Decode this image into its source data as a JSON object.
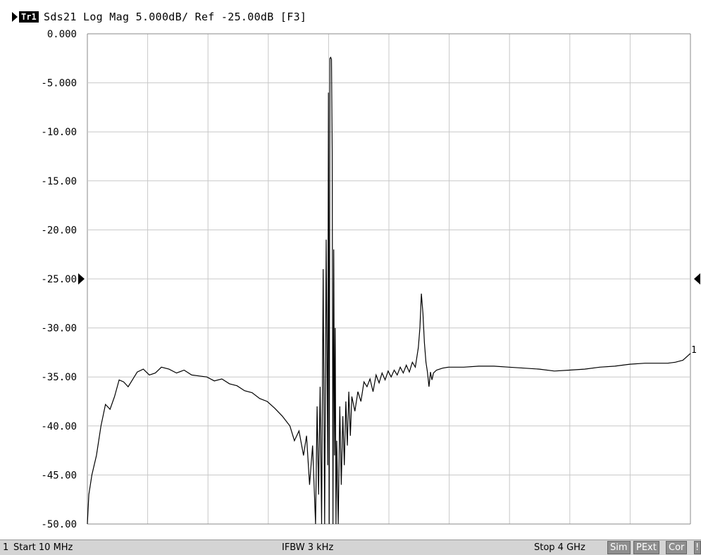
{
  "header": {
    "trace_badge": "Tr1",
    "trace_text": "Sds21 Log Mag 5.000dB/ Ref -25.00dB [F3]"
  },
  "chart_data": {
    "type": "line",
    "title": "Sds21 Log Mag 5.000dB/ Ref -25.00dB [F3]",
    "xlabel": "",
    "ylabel": "",
    "xlim": [
      0.01,
      4.0
    ],
    "ylim": [
      -50,
      0
    ],
    "x_unit": "GHz",
    "y_unit": "dB",
    "grid": true,
    "reference_level": -25.0,
    "scale_per_div": 5.0,
    "yticks": [
      "0.000",
      "-5.000",
      "-10.00",
      "-15.00",
      "-20.00",
      "-25.00",
      "-30.00",
      "-35.00",
      "-40.00",
      "-45.00",
      "-50.00"
    ],
    "trace_marker_label": "1",
    "series": [
      {
        "x": [
          0.01,
          0.02,
          0.04,
          0.07,
          0.1,
          0.13,
          0.16,
          0.19,
          0.22,
          0.25,
          0.28,
          0.3,
          0.34,
          0.38,
          0.42,
          0.46,
          0.5,
          0.55,
          0.6,
          0.65,
          0.7,
          0.75,
          0.8,
          0.85,
          0.9,
          0.95,
          1.0,
          1.05,
          1.1,
          1.15,
          1.2,
          1.25,
          1.3,
          1.35,
          1.38,
          1.41,
          1.44,
          1.46,
          1.48,
          1.5,
          1.52,
          1.53,
          1.54,
          1.55,
          1.56,
          1.57,
          1.58,
          1.59,
          1.6,
          1.605,
          1.61,
          1.615,
          1.62,
          1.625,
          1.63,
          1.635,
          1.64,
          1.645,
          1.65,
          1.655,
          1.66,
          1.67,
          1.68,
          1.69,
          1.7,
          1.71,
          1.72,
          1.73,
          1.74,
          1.75,
          1.76,
          1.78,
          1.8,
          1.82,
          1.84,
          1.86,
          1.88,
          1.9,
          1.92,
          1.94,
          1.96,
          1.98,
          2.0,
          2.02,
          2.04,
          2.06,
          2.08,
          2.1,
          2.12,
          2.14,
          2.16,
          2.18,
          2.2,
          2.21,
          2.22,
          2.23,
          2.24,
          2.25,
          2.26,
          2.27,
          2.28,
          2.29,
          2.3,
          2.32,
          2.36,
          2.4,
          2.5,
          2.6,
          2.7,
          2.8,
          2.9,
          3.0,
          3.1,
          3.2,
          3.3,
          3.4,
          3.5,
          3.6,
          3.7,
          3.8,
          3.85,
          3.9,
          3.95,
          4.0
        ],
        "y": [
          -50.0,
          -47.0,
          -45.0,
          -43.0,
          -40.0,
          -37.8,
          -38.3,
          -37.0,
          -35.3,
          -35.5,
          -36.0,
          -35.5,
          -34.5,
          -34.2,
          -34.8,
          -34.6,
          -34.0,
          -34.2,
          -34.6,
          -34.3,
          -34.8,
          -34.9,
          -35.0,
          -35.4,
          -35.2,
          -35.7,
          -35.9,
          -36.4,
          -36.6,
          -37.2,
          -37.5,
          -38.2,
          -39.0,
          -40.0,
          -41.5,
          -40.5,
          -43.0,
          -41.0,
          -46.0,
          -42.0,
          -50.0,
          -38.0,
          -47.0,
          -36.0,
          -50.0,
          -24.0,
          -50.0,
          -21.0,
          -44.0,
          -6.0,
          -50.0,
          -2.5,
          -2.4,
          -2.6,
          -12.0,
          -50.0,
          -22.0,
          -43.0,
          -30.0,
          -50.0,
          -41.5,
          -50.0,
          -38.0,
          -46.0,
          -39.0,
          -44.0,
          -37.5,
          -42.0,
          -36.5,
          -41.0,
          -37.0,
          -38.5,
          -36.5,
          -37.5,
          -35.5,
          -36.0,
          -35.2,
          -36.5,
          -34.8,
          -35.6,
          -34.6,
          -35.3,
          -34.4,
          -35.0,
          -34.3,
          -34.8,
          -34.0,
          -34.6,
          -33.8,
          -34.5,
          -33.5,
          -34.0,
          -32.0,
          -30.0,
          -26.5,
          -28.5,
          -31.5,
          -33.5,
          -34.5,
          -36.0,
          -34.5,
          -35.3,
          -34.6,
          -34.3,
          -34.1,
          -34.0,
          -34.0,
          -33.9,
          -33.9,
          -34.0,
          -34.1,
          -34.2,
          -34.4,
          -34.3,
          -34.2,
          -34.0,
          -33.9,
          -33.7,
          -33.6,
          -33.6,
          -33.6,
          -33.5,
          -33.3,
          -32.6
        ]
      }
    ]
  },
  "status": {
    "channel": "1",
    "start": "Start 10 MHz",
    "ifbw": "IFBW 3 kHz",
    "stop": "Stop 4 GHz",
    "sim": "Sim",
    "pext": "PExt",
    "cor": "Cor",
    "warn": "!"
  }
}
